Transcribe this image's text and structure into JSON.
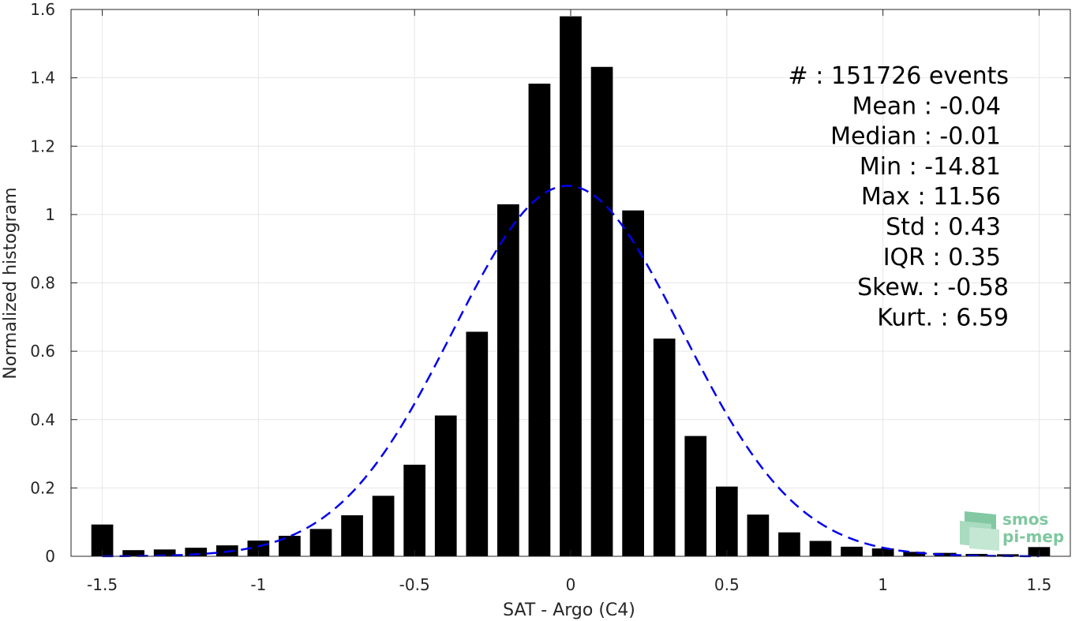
{
  "chart_data": {
    "type": "bar",
    "xlabel": "SAT - Argo (C4)",
    "ylabel": "Normalized histogram",
    "xlim": [
      -1.6,
      1.6
    ],
    "ylim": [
      0,
      1.6
    ],
    "grid": true,
    "xticks": [
      "-1.5",
      "-1",
      "-0.5",
      "0",
      "0.5",
      "1",
      "1.5"
    ],
    "yticks": [
      "0",
      "0.2",
      "0.4",
      "0.6",
      "0.8",
      "1",
      "1.2",
      "1.4",
      "1.6"
    ],
    "bar_width": 0.07,
    "x": [
      -1.5,
      -1.4,
      -1.3,
      -1.2,
      -1.1,
      -1.0,
      -0.9,
      -0.8,
      -0.7,
      -0.6,
      -0.5,
      -0.4,
      -0.3,
      -0.2,
      -0.1,
      0.0,
      0.1,
      0.2,
      0.3,
      0.4,
      0.5,
      0.6,
      0.7,
      0.8,
      0.9,
      1.0,
      1.1,
      1.2,
      1.3,
      1.4,
      1.5
    ],
    "values": [
      0.093,
      0.018,
      0.02,
      0.025,
      0.032,
      0.046,
      0.06,
      0.08,
      0.12,
      0.177,
      0.268,
      0.412,
      0.657,
      1.03,
      1.383,
      1.58,
      1.432,
      1.012,
      0.637,
      0.352,
      0.204,
      0.122,
      0.07,
      0.045,
      0.028,
      0.023,
      0.013,
      0.01,
      0.007,
      0.006,
      0.027
    ],
    "fit": {
      "type": "gaussian",
      "mean": -0.01,
      "std": 0.368,
      "color": "#0000ee",
      "x_range": [
        -1.5,
        1.5
      ]
    },
    "bar_color": "#000000",
    "stats": [
      "#   : 151726 events",
      "Mean : -0.04",
      "Median : -0.01",
      "Min : -14.81",
      "Max : 11.56",
      "Std : 0.43",
      "IQR : 0.35",
      "Skew. : -0.58",
      "Kurt. : 6.59"
    ]
  },
  "logo": {
    "line1": "smos",
    "line2": "pi-mep",
    "color": "#7fc8a0"
  }
}
